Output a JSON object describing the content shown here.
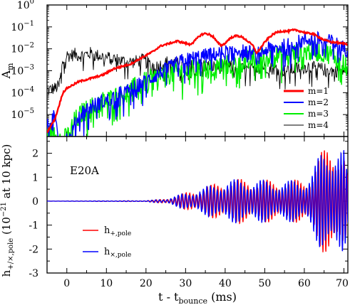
{
  "chart_data": [
    {
      "type": "line",
      "panel": "top",
      "ylabel": "A",
      "ylabel_sub": "m",
      "yscale": "log",
      "xlim": [
        -5,
        71
      ],
      "ylim_exp": [
        -6,
        0
      ],
      "yticks": [
        {
          "value": 0,
          "base": "10",
          "exp": "0"
        },
        {
          "value": -1,
          "base": "10",
          "exp": "−1"
        },
        {
          "value": -2,
          "base": "10",
          "exp": "−2"
        },
        {
          "value": -3,
          "base": "10",
          "exp": "−3"
        },
        {
          "value": -4,
          "base": "10",
          "exp": "−4"
        },
        {
          "value": -5,
          "base": "10",
          "exp": "−5"
        }
      ],
      "legend_position": "lower-right",
      "series": [
        {
          "name": "m=1",
          "color": "#ff0000",
          "x": [
            -5,
            -4,
            -3,
            -2,
            -1,
            0,
            1,
            2,
            3,
            4,
            5,
            6,
            7,
            8,
            9,
            10,
            11,
            12,
            13,
            14,
            15,
            16,
            17,
            18,
            19,
            20,
            21,
            22,
            23,
            24,
            25,
            26,
            27,
            28,
            29,
            30,
            31,
            32,
            33,
            34,
            35,
            36,
            37,
            38,
            39,
            40,
            41,
            42,
            43,
            44,
            45,
            46,
            47,
            48,
            49,
            50,
            51,
            52,
            53,
            54,
            55,
            56,
            57,
            58,
            59,
            60,
            61,
            62,
            63,
            64,
            65,
            66,
            67,
            68,
            69,
            70,
            71
          ],
          "y": [
            -5.8,
            -5.5,
            -5.2,
            -4.6,
            -4.0,
            -3.8,
            -3.7,
            -3.6,
            -3.5,
            -3.45,
            -3.4,
            -3.35,
            -3.3,
            -3.25,
            -3.2,
            -3.1,
            -3.0,
            -2.9,
            -2.85,
            -2.8,
            -2.75,
            -2.7,
            -2.6,
            -2.5,
            -2.4,
            -2.3,
            -2.2,
            -2.1,
            -1.95,
            -1.85,
            -1.8,
            -1.75,
            -1.7,
            -1.65,
            -1.7,
            -1.75,
            -1.8,
            -1.7,
            -1.5,
            -1.35,
            -1.3,
            -1.35,
            -1.45,
            -1.7,
            -1.85,
            -1.75,
            -1.55,
            -1.45,
            -1.4,
            -1.45,
            -1.55,
            -1.7,
            -1.85,
            -2.2,
            -1.95,
            -1.7,
            -1.5,
            -1.35,
            -1.25,
            -1.2,
            -1.2,
            -1.2,
            -1.15,
            -1.15,
            -1.2,
            -1.25,
            -1.3,
            -1.3,
            -1.4,
            -1.5,
            -1.6,
            -1.65,
            -1.7,
            -1.7,
            -1.75,
            -1.75,
            -1.8
          ]
        },
        {
          "name": "m=2",
          "color": "#0000ff",
          "x": [
            -5,
            -4,
            -3,
            -2,
            -1,
            0,
            1,
            2,
            3,
            4,
            5,
            6,
            7,
            8,
            9,
            10,
            11,
            12,
            13,
            14,
            15,
            16,
            17,
            18,
            19,
            20,
            21,
            22,
            23,
            24,
            25,
            26,
            27,
            28,
            29,
            30,
            31,
            32,
            33,
            34,
            35,
            36,
            37,
            38,
            39,
            40,
            41,
            42,
            43,
            44,
            45,
            46,
            47,
            48,
            49,
            50,
            51,
            52,
            53,
            54,
            55,
            56,
            57,
            58,
            59,
            60,
            61,
            62,
            63,
            64,
            65,
            66,
            67,
            68,
            69,
            70,
            71
          ],
          "y": [
            -5.5,
            -5.2,
            -5.0,
            -6.0,
            -6.0,
            -6.0,
            -6.0,
            -5.4,
            -5.0,
            -4.8,
            -4.7,
            -4.6,
            -4.5,
            -4.4,
            -4.35,
            -4.3,
            -4.2,
            -4.1,
            -4.0,
            -3.95,
            -3.9,
            -3.8,
            -3.7,
            -3.6,
            -3.5,
            -3.4,
            -3.3,
            -3.2,
            -3.1,
            -3.0,
            -2.9,
            -2.8,
            -2.7,
            -2.6,
            -2.5,
            -2.45,
            -2.4,
            -2.35,
            -2.3,
            -2.3,
            -2.25,
            -2.2,
            -2.2,
            -2.15,
            -2.1,
            -2.1,
            -2.05,
            -2.0,
            -2.0,
            -2.0,
            -2.05,
            -2.1,
            -2.15,
            -2.2,
            -2.1,
            -2.0,
            -1.95,
            -1.9,
            -1.9,
            -1.85,
            -1.8,
            -1.75,
            -1.7,
            -1.65,
            -1.6,
            -1.55,
            -1.5,
            -1.5,
            -1.5,
            -1.5,
            -1.55,
            -1.6,
            -1.6,
            -1.7,
            -1.8,
            -1.9,
            -2.0
          ]
        },
        {
          "name": "m=3",
          "color": "#00ee00",
          "x": [
            -5,
            -4,
            -3,
            -2,
            -1,
            0,
            1,
            2,
            3,
            4,
            5,
            6,
            7,
            8,
            9,
            10,
            11,
            12,
            13,
            14,
            15,
            16,
            17,
            18,
            19,
            20,
            21,
            22,
            23,
            24,
            25,
            26,
            27,
            28,
            29,
            30,
            31,
            32,
            33,
            34,
            35,
            36,
            37,
            38,
            39,
            40,
            41,
            42,
            43,
            44,
            45,
            46,
            47,
            48,
            49,
            50,
            51,
            52,
            53,
            54,
            55,
            56,
            57,
            58,
            59,
            60,
            61,
            62,
            63,
            64,
            65,
            66,
            67,
            68,
            69,
            70,
            71
          ],
          "y": [
            -5.9,
            -5.8,
            -5.6,
            -6.0,
            -6.0,
            -6.0,
            -5.5,
            -5.2,
            -5.0,
            -4.8,
            -4.7,
            -4.6,
            -4.5,
            -4.4,
            -4.3,
            -4.25,
            -4.2,
            -4.1,
            -4.05,
            -4.0,
            -3.9,
            -3.8,
            -3.7,
            -3.6,
            -3.5,
            -3.4,
            -3.3,
            -3.25,
            -3.2,
            -3.15,
            -3.1,
            -3.05,
            -3.0,
            -2.95,
            -2.95,
            -2.9,
            -2.9,
            -2.85,
            -2.85,
            -2.8,
            -2.8,
            -2.8,
            -2.75,
            -2.7,
            -2.7,
            -2.65,
            -2.6,
            -2.6,
            -2.55,
            -2.5,
            -2.5,
            -2.45,
            -2.4,
            -2.4,
            -2.35,
            -2.3,
            -2.3,
            -2.3,
            -2.25,
            -2.2,
            -2.2,
            -2.2,
            -2.15,
            -2.1,
            -2.1,
            -2.05,
            -2.0,
            -2.0,
            -2.0,
            -2.0,
            -2.05,
            -2.1,
            -2.2,
            -2.3,
            -2.4,
            -2.5,
            -2.6
          ]
        },
        {
          "name": "m=4",
          "color": "#000000",
          "x": [
            -5,
            -4,
            -3,
            -2,
            -1,
            0,
            1,
            2,
            3,
            4,
            5,
            6,
            7,
            8,
            9,
            10,
            11,
            12,
            13,
            14,
            15,
            16,
            17,
            18,
            19,
            20,
            21,
            22,
            23,
            24,
            25,
            26,
            27,
            28,
            29,
            30,
            31,
            32,
            33,
            34,
            35,
            36,
            37,
            38,
            39,
            40,
            41,
            42,
            43,
            44,
            45,
            46,
            47,
            48,
            49,
            50,
            51,
            52,
            53,
            54,
            55,
            56,
            57,
            58,
            59,
            60,
            61,
            62,
            63,
            64,
            65,
            66,
            67,
            68,
            69,
            70,
            71
          ],
          "y": [
            -3.9,
            -3.85,
            -3.8,
            -3.7,
            -2.6,
            -2.3,
            -2.3,
            -2.25,
            -2.3,
            -2.3,
            -2.25,
            -2.2,
            -2.3,
            -2.3,
            -2.35,
            -2.4,
            -2.4,
            -2.45,
            -2.5,
            -2.55,
            -2.6,
            -2.6,
            -2.6,
            -2.55,
            -2.5,
            -2.6,
            -2.7,
            -2.75,
            -2.8,
            -2.7,
            -2.6,
            -2.6,
            -2.65,
            -2.7,
            -2.75,
            -2.8,
            -2.8,
            -2.75,
            -2.7,
            -2.7,
            -2.75,
            -2.8,
            -2.8,
            -2.85,
            -2.85,
            -2.8,
            -2.8,
            -2.85,
            -2.9,
            -2.9,
            -2.95,
            -2.95,
            -2.9,
            -2.85,
            -2.85,
            -2.8,
            -2.85,
            -2.9,
            -2.9,
            -2.95,
            -3.0,
            -3.0,
            -2.95,
            -2.9,
            -2.9,
            -2.85,
            -2.8,
            -2.85,
            -2.9,
            -2.9,
            -2.95,
            -2.95,
            -3.0,
            -3.0,
            -3.0,
            -3.0,
            -3.0
          ]
        }
      ]
    },
    {
      "type": "line",
      "panel": "bottom",
      "annotation": "E20A",
      "ylabel": "h",
      "ylabel_sub": "+/×,pole",
      "ylabel_suffix": " (10",
      "ylabel_sup": "−21",
      "ylabel_tail": " at 10 kpc)",
      "xlabel": "t - t",
      "xlabel_sub": "bounce",
      "xlabel_tail": " (ms)",
      "xlim": [
        -5,
        71
      ],
      "ylim": [
        -3,
        2.7
      ],
      "xticks": [
        "0",
        "10",
        "20",
        "30",
        "40",
        "50",
        "60",
        "70"
      ],
      "yticks": [
        "2",
        "1",
        "0",
        "-1",
        "-2",
        "-3"
      ],
      "legend_position": "lower-left",
      "series": [
        {
          "name": "h",
          "name_sub": "+,pole",
          "color": "#ff0000"
        },
        {
          "name": "h",
          "name_sub": "×,pole",
          "color": "#0000ff"
        }
      ],
      "amplitude_envelope": {
        "x": [
          -5,
          20,
          25,
          30,
          35,
          40,
          45,
          50,
          55,
          60,
          62,
          64,
          66,
          68,
          70,
          71
        ],
        "y": [
          0.0,
          0.02,
          0.1,
          0.35,
          0.6,
          0.9,
          0.95,
          0.9,
          0.85,
          0.95,
          1.3,
          2.0,
          2.4,
          2.6,
          2.2,
          1.0
        ]
      }
    }
  ]
}
